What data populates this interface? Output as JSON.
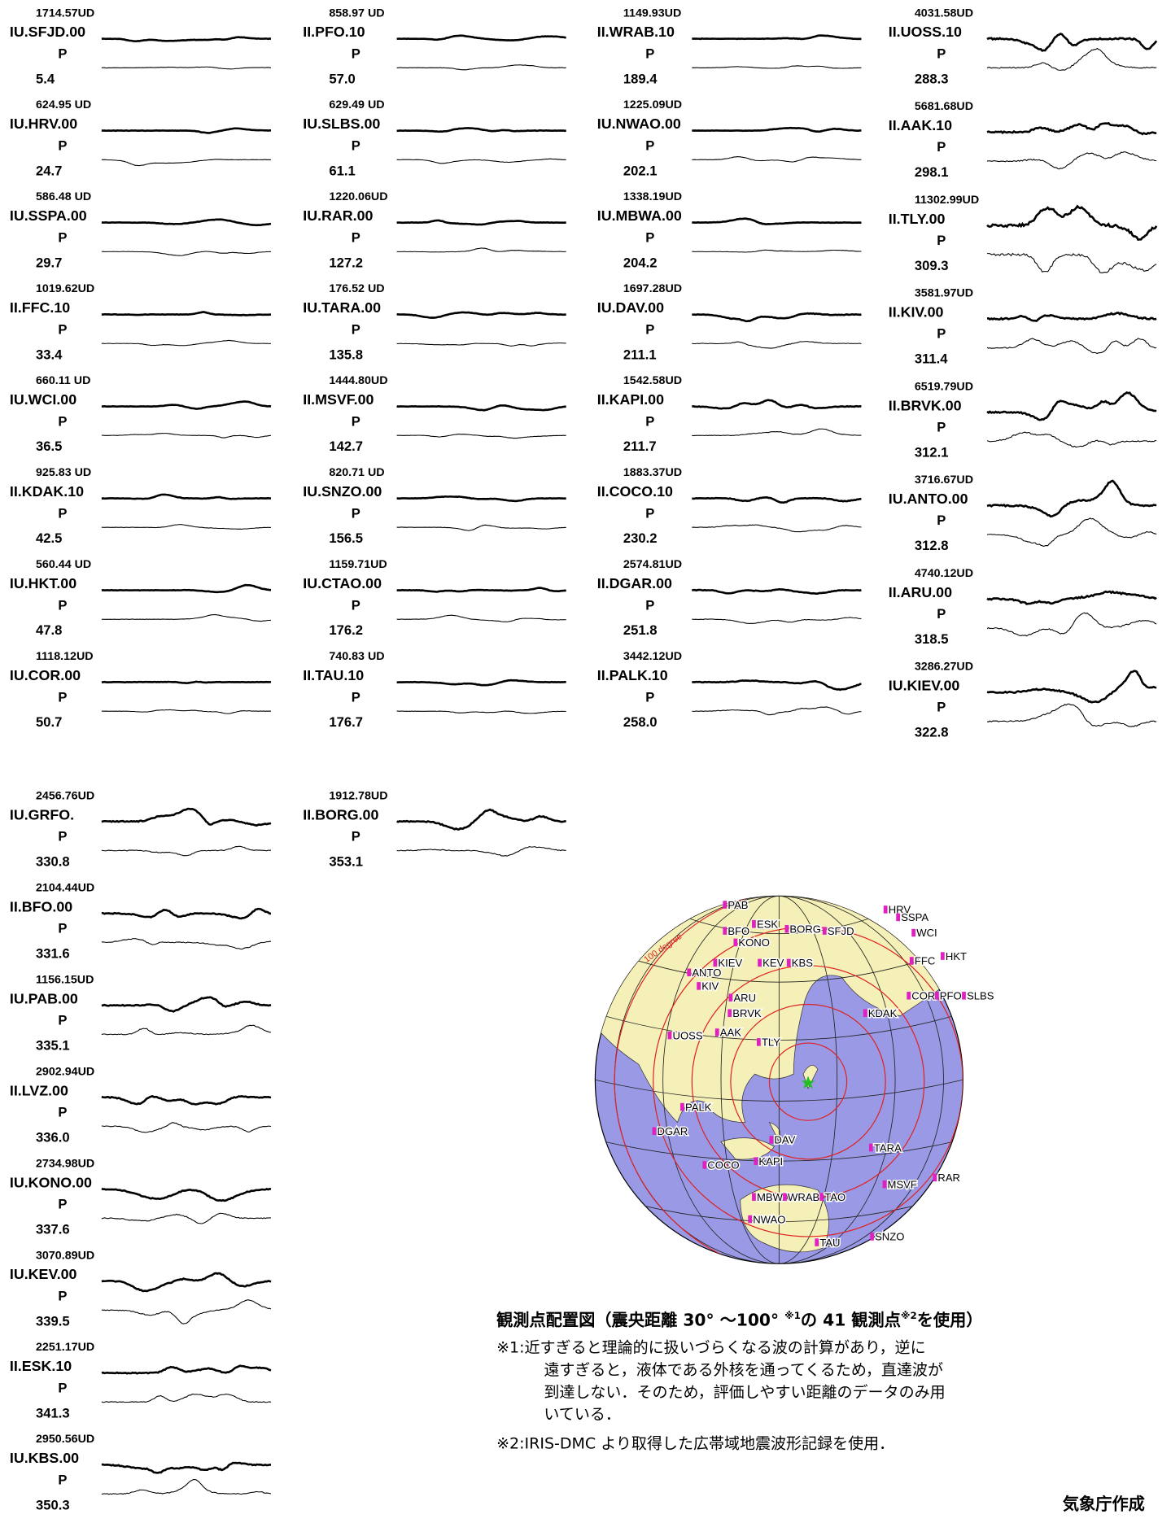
{
  "stations": [
    {
      "amplitude": "1714.57UD",
      "name": "IU.SFJD.00",
      "phase": "P",
      "azimuth": "5.4"
    },
    {
      "amplitude": "624.95 UD",
      "name": "IU.HRV.00",
      "phase": "P",
      "azimuth": "24.7"
    },
    {
      "amplitude": "586.48 UD",
      "name": "IU.SSPA.00",
      "phase": "P",
      "azimuth": "29.7"
    },
    {
      "amplitude": "1019.62UD",
      "name": "II.FFC.10",
      "phase": "P",
      "azimuth": "33.4"
    },
    {
      "amplitude": "660.11 UD",
      "name": "IU.WCI.00",
      "phase": "P",
      "azimuth": "36.5"
    },
    {
      "amplitude": "925.83 UD",
      "name": "II.KDAK.10",
      "phase": "P",
      "azimuth": "42.5"
    },
    {
      "amplitude": "560.44 UD",
      "name": "IU.HKT.00",
      "phase": "P",
      "azimuth": "47.8"
    },
    {
      "amplitude": "1118.12UD",
      "name": "IU.COR.00",
      "phase": "P",
      "azimuth": "50.7"
    },
    {
      "amplitude": "858.97 UD",
      "name": "II.PFO.10",
      "phase": "P",
      "azimuth": "57.0"
    },
    {
      "amplitude": "629.49 UD",
      "name": "IU.SLBS.00",
      "phase": "P",
      "azimuth": "61.1"
    },
    {
      "amplitude": "1220.06UD",
      "name": "IU.RAR.00",
      "phase": "P",
      "azimuth": "127.2"
    },
    {
      "amplitude": "176.52 UD",
      "name": "IU.TARA.00",
      "phase": "P",
      "azimuth": "135.8"
    },
    {
      "amplitude": "1444.80UD",
      "name": "II.MSVF.00",
      "phase": "P",
      "azimuth": "142.7"
    },
    {
      "amplitude": "820.71 UD",
      "name": "IU.SNZO.00",
      "phase": "P",
      "azimuth": "156.5"
    },
    {
      "amplitude": "1159.71UD",
      "name": "IU.CTAO.00",
      "phase": "P",
      "azimuth": "176.2"
    },
    {
      "amplitude": "740.83 UD",
      "name": "II.TAU.10",
      "phase": "P",
      "azimuth": "176.7"
    },
    {
      "amplitude": "1149.93UD",
      "name": "II.WRAB.10",
      "phase": "P",
      "azimuth": "189.4"
    },
    {
      "amplitude": "1225.09UD",
      "name": "IU.NWAO.00",
      "phase": "P",
      "azimuth": "202.1"
    },
    {
      "amplitude": "1338.19UD",
      "name": "IU.MBWA.00",
      "phase": "P",
      "azimuth": "204.2"
    },
    {
      "amplitude": "1697.28UD",
      "name": "IU.DAV.00",
      "phase": "P",
      "azimuth": "211.1"
    },
    {
      "amplitude": "1542.58UD",
      "name": "II.KAPI.00",
      "phase": "P",
      "azimuth": "211.7"
    },
    {
      "amplitude": "1883.37UD",
      "name": "II.COCO.10",
      "phase": "P",
      "azimuth": "230.2"
    },
    {
      "amplitude": "2574.81UD",
      "name": "II.DGAR.00",
      "phase": "P",
      "azimuth": "251.8"
    },
    {
      "amplitude": "3442.12UD",
      "name": "II.PALK.10",
      "phase": "P",
      "azimuth": "258.0"
    },
    {
      "amplitude": "4031.58UD",
      "name": "II.UOSS.10",
      "phase": "P",
      "azimuth": "288.3"
    },
    {
      "amplitude": "5681.68UD",
      "name": "II.AAK.10",
      "phase": "P",
      "azimuth": "298.1"
    },
    {
      "amplitude": "11302.99UD",
      "name": "II.TLY.00",
      "phase": "P",
      "azimuth": "309.3"
    },
    {
      "amplitude": "3581.97UD",
      "name": "II.KIV.00",
      "phase": "P",
      "azimuth": "311.4"
    },
    {
      "amplitude": "6519.79UD",
      "name": "II.BRVK.00",
      "phase": "P",
      "azimuth": "312.1"
    },
    {
      "amplitude": "3716.67UD",
      "name": "IU.ANTO.00",
      "phase": "P",
      "azimuth": "312.8"
    },
    {
      "amplitude": "4740.12UD",
      "name": "II.ARU.00",
      "phase": "P",
      "azimuth": "318.5"
    },
    {
      "amplitude": "3286.27UD",
      "name": "IU.KIEV.00",
      "phase": "P",
      "azimuth": "322.8"
    },
    {
      "amplitude": "2456.76UD",
      "name": "IU.GRFO.",
      "phase": "P",
      "azimuth": "330.8"
    },
    {
      "amplitude": "2104.44UD",
      "name": "II.BFO.00",
      "phase": "P",
      "azimuth": "331.6"
    },
    {
      "amplitude": "1156.15UD",
      "name": "IU.PAB.00",
      "phase": "P",
      "azimuth": "335.1"
    },
    {
      "amplitude": "2902.94UD",
      "name": "II.LVZ.00",
      "phase": "P",
      "azimuth": "336.0"
    },
    {
      "amplitude": "2734.98UD",
      "name": "IU.KONO.00",
      "phase": "P",
      "azimuth": "337.6"
    },
    {
      "amplitude": "3070.89UD",
      "name": "IU.KEV.00",
      "phase": "P",
      "azimuth": "339.5"
    },
    {
      "amplitude": "2251.17UD",
      "name": "II.ESK.10",
      "phase": "P",
      "azimuth": "341.3"
    },
    {
      "amplitude": "2950.56UD",
      "name": "IU.KBS.00",
      "phase": "P",
      "azimuth": "350.3"
    },
    {
      "amplitude": "1912.78UD",
      "name": "II.BORG.00",
      "phase": "P",
      "azimuth": "353.1"
    }
  ],
  "map": {
    "distance_label": "100 degree",
    "labels": [
      "PAB",
      "ESK",
      "BORG",
      "SFJD",
      "HRV",
      "SSPA",
      "WCI",
      "BFO",
      "KONO",
      "KEV",
      "KBS",
      "KIEV",
      "ANTO",
      "KIV",
      "ARU",
      "HKT",
      "FFC",
      "COR",
      "PFO",
      "SLBS",
      "KDAK",
      "BRVK",
      "AAK",
      "UOSS",
      "TLY",
      "PALK",
      "DGAR",
      "DAV",
      "TARA",
      "COCO",
      "KAPI",
      "MSVF",
      "RAR",
      "MBWA",
      "WRAB",
      "TAO",
      "NWAO",
      "TAU",
      "SNZO"
    ]
  },
  "caption": {
    "title": [
      "観測点配置図（震央距離 30° ～100° ",
      "※1",
      "の 41 観測点",
      "※2",
      "を使用）"
    ],
    "note1": [
      "※1:近すぎると理論的に扱いづらくなる波の計算があり，逆に",
      "遠すぎると，液体である外核を通ってくるため，直達波が",
      "到達しない．そのため，評価しやすい距離のデータのみ用",
      "いている．"
    ],
    "note2": "※2:IRIS-DMC より取得した広帯域地震波形記録を使用．"
  },
  "credit": "気象庁作成"
}
